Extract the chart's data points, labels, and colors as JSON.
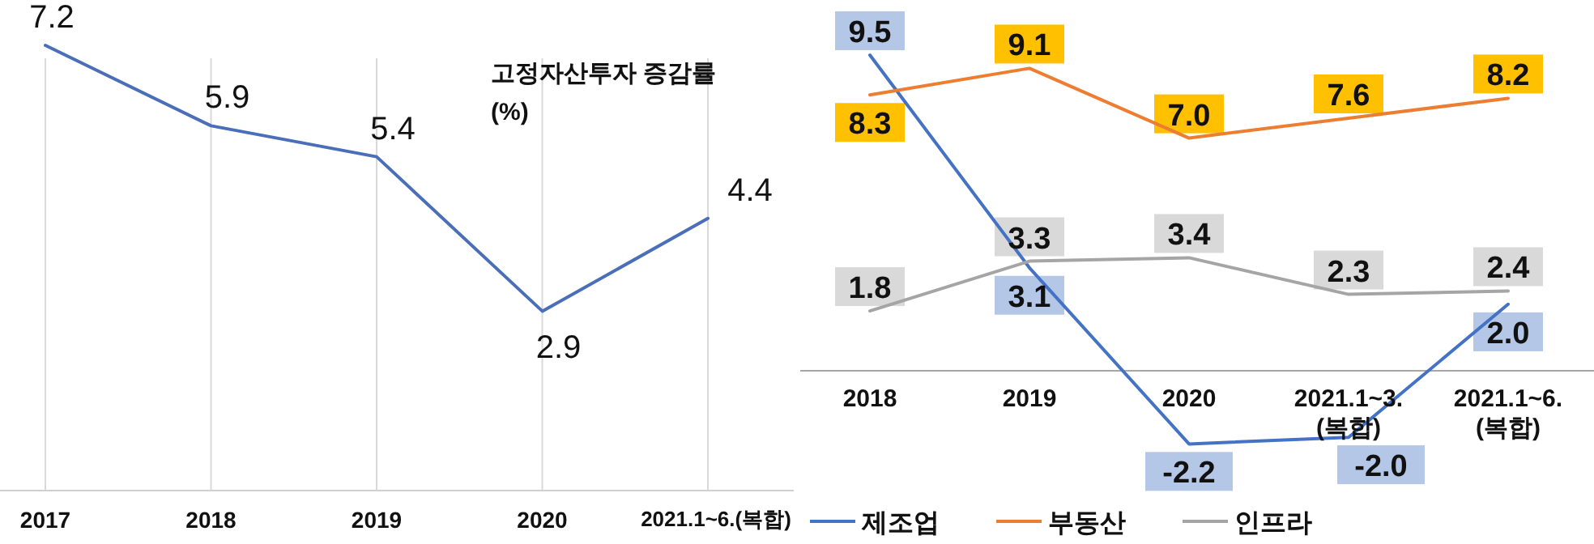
{
  "chart_data": [
    {
      "type": "line",
      "title": "고정자산투자 증감률 (%)",
      "categories": [
        "2017",
        "2018",
        "2019",
        "2020",
        "2021.1~6.(복합)"
      ],
      "values": [
        7.2,
        5.9,
        5.4,
        2.9,
        4.4
      ],
      "color": "#4a6fb8",
      "grid": "x",
      "data_labels": true
    },
    {
      "type": "line",
      "categories": [
        "2018",
        "2019",
        "2020",
        "2021.1~3. (복합)",
        "2021.1~6. (복합)"
      ],
      "series": [
        {
          "name": "제조업",
          "color": "#4472c4",
          "values": [
            9.5,
            3.1,
            -2.2,
            -2.0,
            2.0
          ],
          "value_labels": [
            "9.5",
            "3.1",
            "-2.2",
            "-2.0",
            "2.0"
          ]
        },
        {
          "name": "부동산",
          "color": "#ed7d31",
          "values": [
            8.3,
            9.1,
            7.0,
            7.6,
            8.2
          ],
          "value_labels": [
            "8.3",
            "9.1",
            "7.0",
            "7.6",
            "8.2"
          ]
        },
        {
          "name": "인프라",
          "color": "#a5a5a5",
          "values": [
            1.8,
            3.3,
            3.4,
            2.3,
            2.4
          ],
          "value_labels": [
            "1.8",
            "3.3",
            "3.4",
            "2.3",
            "2.4"
          ]
        }
      ],
      "legend": "bottom"
    }
  ]
}
